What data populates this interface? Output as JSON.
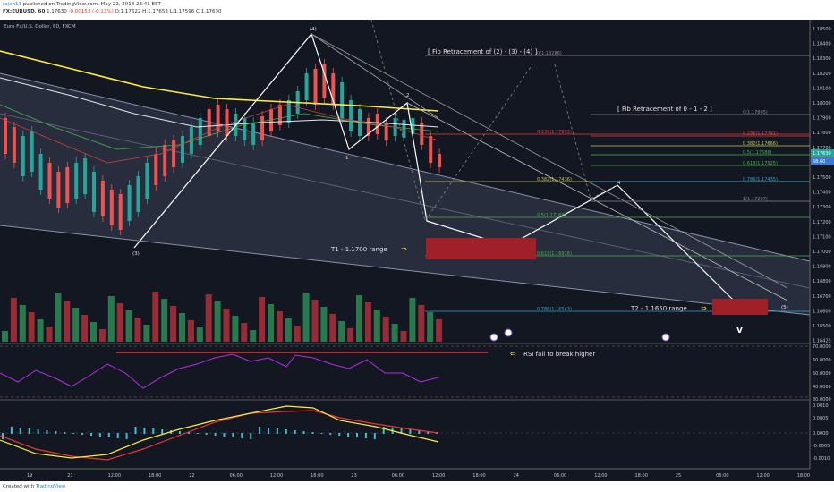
{
  "header": {
    "author": "rajeh13",
    "published": "published on TradingView.com, May 22, 2018 23:41 EST",
    "symbol": "FX:EURUSD, 60",
    "price": "1.17630",
    "change": "-0.00153 (-0.13%)",
    "ohlc": "O:1.17622 H:1.17653 L:1.17596 C:1.17630"
  },
  "footer": {
    "created_with": "Created with",
    "brand": "TradingView"
  },
  "chart_data": {
    "type": "candlestick",
    "title": "Euro Fx/U.S. Dollar, 60, FXCM",
    "x_ticks": [
      "19",
      "21",
      "12:00",
      "18:00",
      "22",
      "06:00",
      "12:00",
      "18:00",
      "23",
      "06:00",
      "12:00",
      "18:00",
      "24",
      "06:00",
      "12:00",
      "18:00",
      "25",
      "06:00",
      "12:00",
      "18:00"
    ],
    "y_ticks": [
      "1.18500",
      "1.18400",
      "1.18300",
      "1.18200",
      "1.18100",
      "1.18000",
      "1.17900",
      "1.17800",
      "1.17700",
      "1.17600",
      "1.17500",
      "1.17400",
      "1.17300",
      "1.17200",
      "1.17100",
      "1.17000",
      "1.16900",
      "1.16800",
      "1.16700",
      "1.16600",
      "1.16500",
      "1.16425"
    ],
    "price_labels": [
      "1.17630",
      "58.60"
    ],
    "rsi_ticks": [
      "70.0000",
      "60.0000",
      "50.0000",
      "40.0000",
      "30.0000"
    ],
    "macd_ticks": [
      "0.0010",
      "0.0005",
      "0.0000",
      "-0.0005",
      "-0.0010"
    ],
    "elliott_labels": [
      "(3)",
      "(4)",
      "1",
      "2",
      "3",
      "4",
      "5",
      "(5)"
    ],
    "annotations": {
      "fib_title_1": "[  Fib Retracement of (2) - (3) - (4)  ]",
      "fib_title_2": "[  Fib Retracement of 0 - 1 - 2  ]",
      "t1": "T1 - 1.1700 range",
      "t2": "T2 - 1.1650 range",
      "rsi_note": "RSI fail to break higher",
      "v": "V"
    },
    "fib_levels_1": [
      {
        "label": "0(1.18286)",
        "color": "#888888"
      },
      {
        "label": "0.236(1.17853)",
        "color": "#e04040"
      },
      {
        "label": "0.382(1.17436)",
        "color": "#c8c85a"
      },
      {
        "label": "0.5(1.17166)",
        "color": "#4caf50"
      },
      {
        "label": "0.618(1.16916)",
        "color": "#4caf50"
      },
      {
        "label": "0.786(1.16543)",
        "color": "#3aa0c8"
      }
    ],
    "fib_levels_2": [
      {
        "label": "0(1.17895)",
        "color": "#888888"
      },
      {
        "label": "0.236(1.17791)",
        "color": "#e04040"
      },
      {
        "label": "0.382(1.17666)",
        "color": "#c8c85a"
      },
      {
        "label": "0.5(1.17586)",
        "color": "#4caf50"
      },
      {
        "label": "0.618(1.17525)",
        "color": "#4caf50"
      },
      {
        "label": "0.786(1.17435)",
        "color": "#3aa0c8"
      },
      {
        "label": "1(1.17297)",
        "color": "#888888"
      }
    ],
    "colors": {
      "up": "#26a69a",
      "down": "#ef5350",
      "ma_yellow": "#ffeb3b",
      "rsi": "#b030e0",
      "macd": "#ffeb3b",
      "signal": "#e53935"
    }
  }
}
